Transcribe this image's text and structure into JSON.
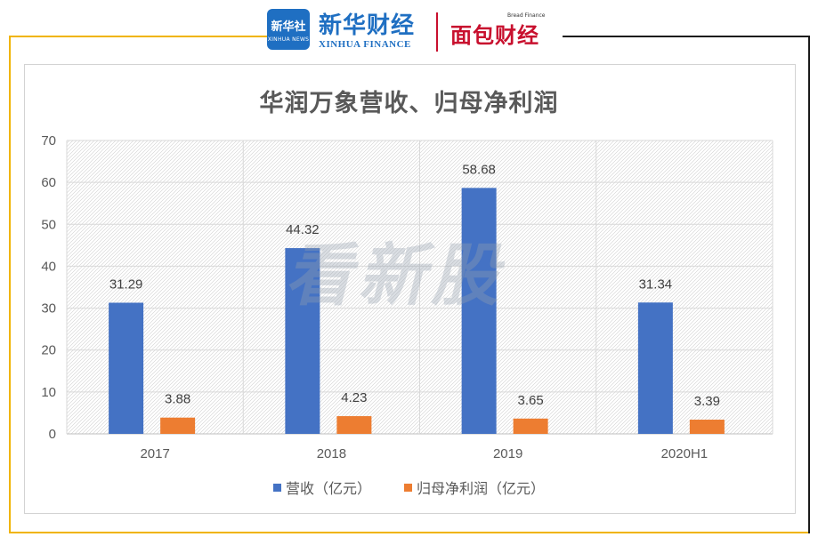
{
  "header": {
    "logo_text": "新华社",
    "logo_sub": "XINHUA NEWS",
    "brand_cn": "新华财经",
    "brand_en": "XINHUA FINANCE",
    "partner_cn": "面包财经",
    "partner_en": "Bread Finance",
    "watermark": "看新股"
  },
  "colors": {
    "accent_left": "#f0b400",
    "accent_right": "#1a1a1a",
    "series_revenue": "#4472c4",
    "series_profit": "#ed7d31"
  },
  "chart_data": {
    "type": "bar",
    "title": "华润万象营收、归母净利润",
    "categories": [
      "2017",
      "2018",
      "2019",
      "2020H1"
    ],
    "series": [
      {
        "name": "营收（亿元）",
        "values": [
          31.29,
          44.32,
          58.68,
          31.34
        ],
        "labels": [
          "31.29",
          "44.32",
          "58.68",
          "31.34"
        ],
        "color": "#4472c4"
      },
      {
        "name": "归母净利润（亿元）",
        "values": [
          3.88,
          4.23,
          3.65,
          3.39
        ],
        "labels": [
          "3.88",
          "4.23",
          "3.65",
          "3.39"
        ],
        "color": "#ed7d31"
      }
    ],
    "ylim": [
      0,
      70
    ],
    "yticks": [
      0,
      10,
      20,
      30,
      40,
      50,
      60,
      70
    ],
    "ytick_labels": [
      "0",
      "10",
      "20",
      "30",
      "40",
      "50",
      "60",
      "70"
    ],
    "grid": true,
    "legend": "bottom"
  }
}
